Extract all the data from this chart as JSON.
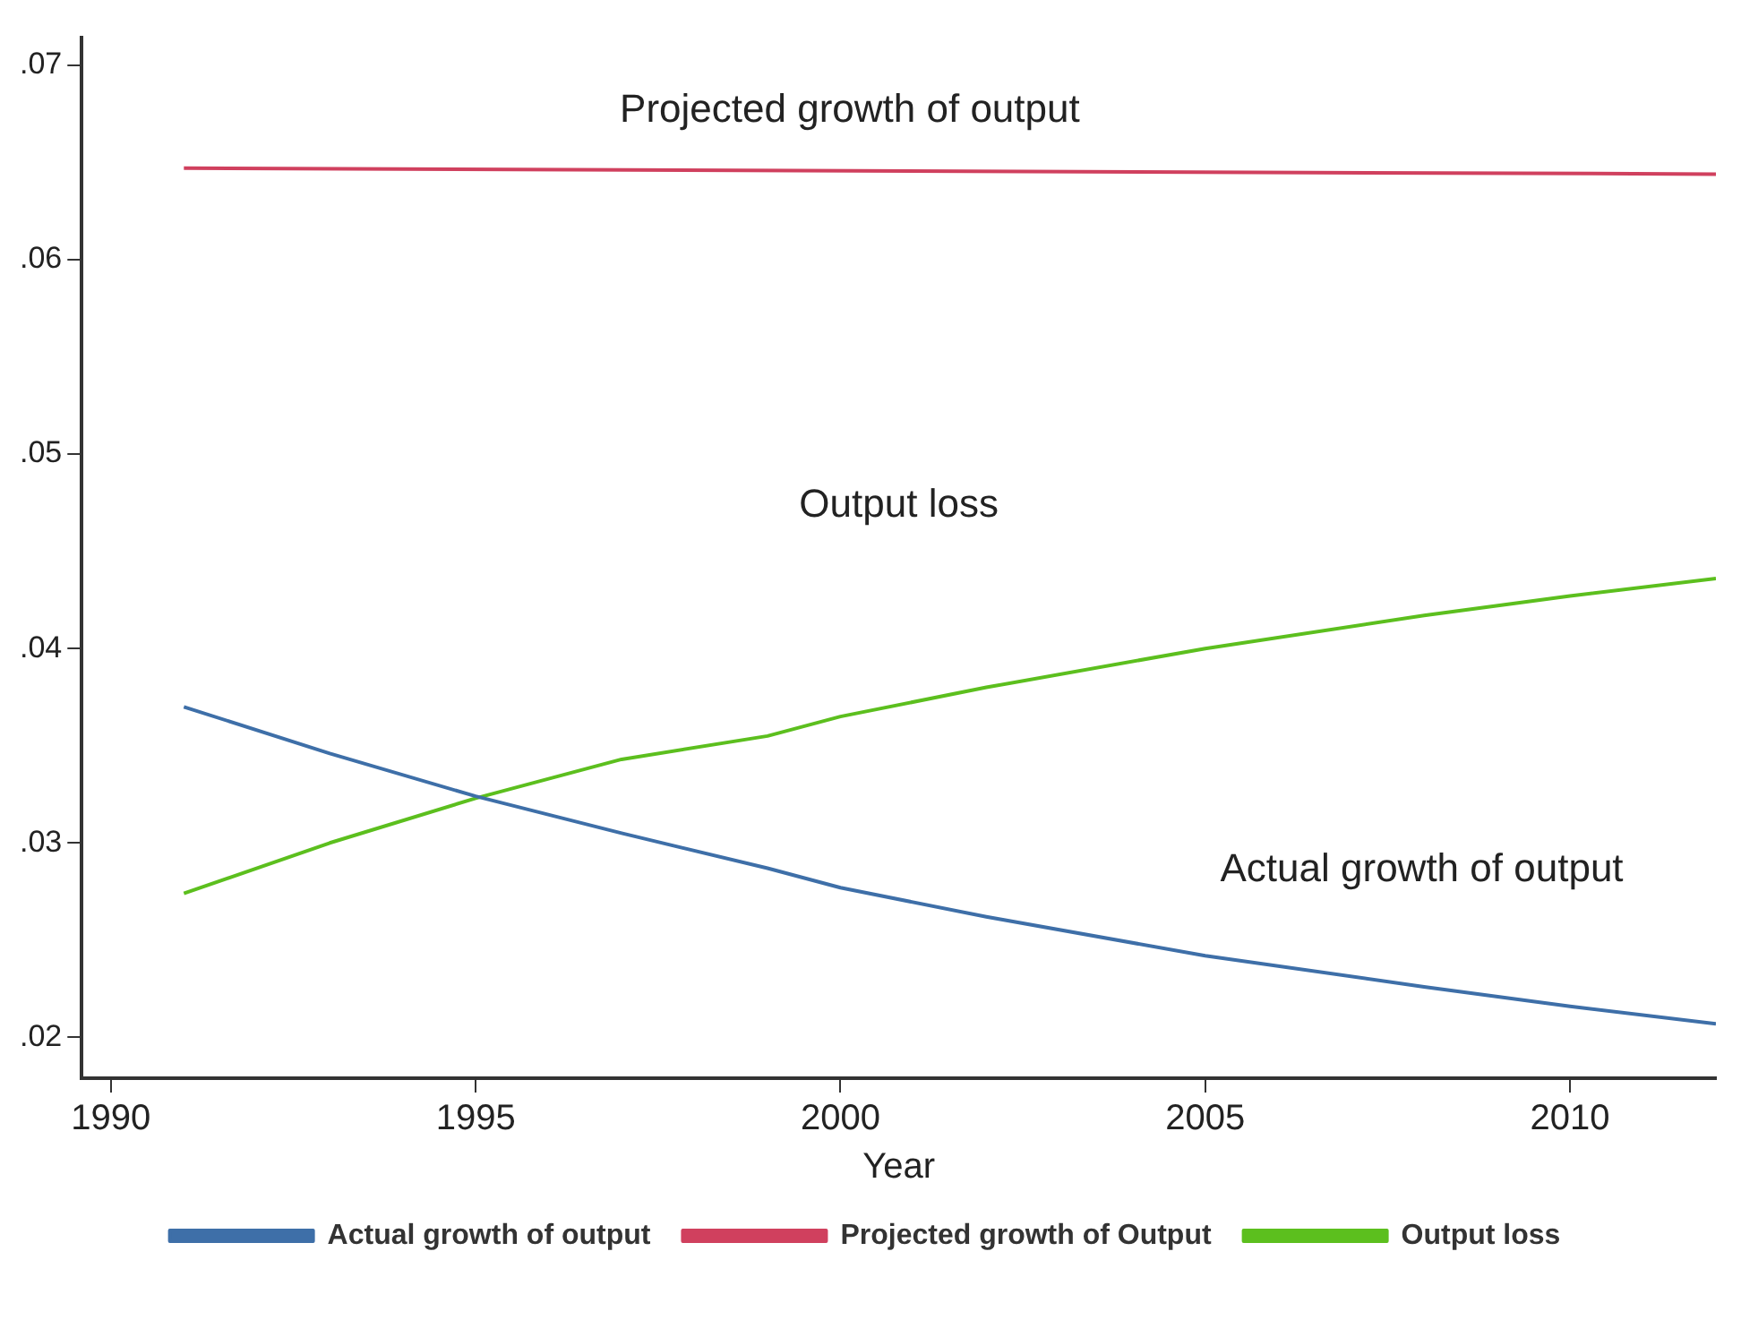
{
  "chart_data": {
    "type": "line",
    "xlabel": "Year",
    "x": [
      1991,
      1993,
      1995,
      1997,
      1999,
      2000,
      2002,
      2005,
      2008,
      2010,
      2012
    ],
    "series": [
      {
        "name": "Actual growth of output",
        "color": "#3e6fa8",
        "values": [
          0.037,
          0.0346,
          0.0324,
          0.0305,
          0.0287,
          0.0277,
          0.0262,
          0.0242,
          0.0226,
          0.0216,
          0.0207
        ]
      },
      {
        "name": "Projected growth of Output",
        "color": "#d0405e",
        "x": [
          1991,
          2012
        ],
        "values": [
          0.0647,
          0.0644
        ]
      },
      {
        "name": "Output loss",
        "color": "#5cbf1e",
        "values": [
          0.0274,
          0.03,
          0.0323,
          0.0343,
          0.0355,
          0.0365,
          0.038,
          0.04,
          0.0417,
          0.0427,
          0.0436
        ]
      }
    ],
    "xlim": [
      1989.6,
      2012
    ],
    "xticks": [
      1990,
      1995,
      2000,
      2005,
      2010
    ],
    "ylim": [
      0.0179,
      0.0714
    ],
    "yticks": [
      {
        "value": 0.02,
        "label": ".02"
      },
      {
        "value": 0.03,
        "label": ".03"
      },
      {
        "value": 0.04,
        "label": ".04"
      },
      {
        "value": 0.05,
        "label": ".05"
      },
      {
        "value": 0.06,
        "label": ".06"
      },
      {
        "value": 0.07,
        "label": ".07"
      }
    ],
    "annotations": [
      "Projected growth of output",
      "Output loss",
      "Actual growth of output"
    ],
    "grid": false,
    "legend": "bottom",
    "marker": "none",
    "line_style": "solid"
  }
}
